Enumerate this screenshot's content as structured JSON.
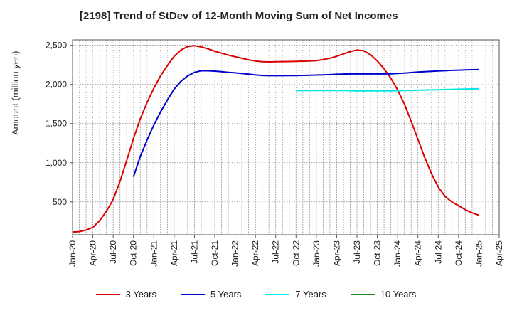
{
  "chart_data": {
    "type": "line",
    "title": "[2198]  Trend of StDev of 12-Month Moving Sum of Net Incomes",
    "ylabel": "Amount (million yen)",
    "xlabel": "",
    "ylim": [
      80,
      2570
    ],
    "yticks": [
      500,
      1000,
      1500,
      2000,
      2500
    ],
    "ytick_labels": [
      "500",
      "1,000",
      "1,500",
      "2,000",
      "2,500"
    ],
    "xticks": [
      "Jan-20",
      "Apr-20",
      "Jul-20",
      "Oct-20",
      "Jan-21",
      "Apr-21",
      "Jul-21",
      "Oct-21",
      "Jan-22",
      "Apr-22",
      "Jul-22",
      "Oct-22",
      "Jan-23",
      "Apr-23",
      "Jul-23",
      "Oct-23",
      "Jan-24",
      "Apr-24",
      "Jul-24",
      "Oct-24",
      "Jan-25",
      "Apr-25"
    ],
    "grid": true,
    "legend_position": "bottom",
    "series": [
      {
        "name": "3 Years",
        "color": "#dd0000",
        "points": [
          [
            "Jan-20",
            115
          ],
          [
            "Feb-20",
            120
          ],
          [
            "Mar-20",
            140
          ],
          [
            "Apr-20",
            175
          ],
          [
            "May-20",
            260
          ],
          [
            "Jun-20",
            380
          ],
          [
            "Jul-20",
            530
          ],
          [
            "Aug-20",
            760
          ],
          [
            "Sep-20",
            1030
          ],
          [
            "Oct-20",
            1310
          ],
          [
            "Nov-20",
            1560
          ],
          [
            "Dec-20",
            1770
          ],
          [
            "Jan-21",
            1950
          ],
          [
            "Feb-21",
            2110
          ],
          [
            "Mar-21",
            2240
          ],
          [
            "Apr-21",
            2360
          ],
          [
            "May-21",
            2440
          ],
          [
            "Jun-21",
            2485
          ],
          [
            "Jul-21",
            2495
          ],
          [
            "Aug-21",
            2480
          ],
          [
            "Sep-21",
            2455
          ],
          [
            "Oct-21",
            2425
          ],
          [
            "Nov-21",
            2400
          ],
          [
            "Dec-21",
            2375
          ],
          [
            "Jan-22",
            2355
          ],
          [
            "Feb-22",
            2335
          ],
          [
            "Mar-22",
            2315
          ],
          [
            "Apr-22",
            2300
          ],
          [
            "May-22",
            2290
          ],
          [
            "Jun-22",
            2288
          ],
          [
            "Jul-22",
            2290
          ],
          [
            "Aug-22",
            2292
          ],
          [
            "Sep-22",
            2293
          ],
          [
            "Oct-22",
            2295
          ],
          [
            "Nov-22",
            2297
          ],
          [
            "Dec-22",
            2300
          ],
          [
            "Jan-23",
            2305
          ],
          [
            "Feb-23",
            2318
          ],
          [
            "Mar-23",
            2335
          ],
          [
            "Apr-23",
            2360
          ],
          [
            "May-23",
            2390
          ],
          [
            "Jun-23",
            2420
          ],
          [
            "Jul-23",
            2440
          ],
          [
            "Aug-23",
            2430
          ],
          [
            "Sep-23",
            2380
          ],
          [
            "Oct-23",
            2300
          ],
          [
            "Nov-23",
            2200
          ],
          [
            "Dec-23",
            2080
          ],
          [
            "Jan-24",
            1930
          ],
          [
            "Feb-24",
            1750
          ],
          [
            "Mar-24",
            1530
          ],
          [
            "Apr-24",
            1300
          ],
          [
            "May-24",
            1070
          ],
          [
            "Jun-24",
            860
          ],
          [
            "Jul-24",
            690
          ],
          [
            "Aug-24",
            570
          ],
          [
            "Sep-24",
            500
          ],
          [
            "Oct-24",
            450
          ],
          [
            "Nov-24",
            400
          ],
          [
            "Dec-24",
            360
          ],
          [
            "Jan-25",
            330
          ]
        ]
      },
      {
        "name": "5 Years",
        "color": "#0000cc",
        "points": [
          [
            "Oct-20",
            820
          ],
          [
            "Nov-20",
            1080
          ],
          [
            "Dec-20",
            1290
          ],
          [
            "Jan-21",
            1480
          ],
          [
            "Feb-21",
            1650
          ],
          [
            "Mar-21",
            1800
          ],
          [
            "Apr-21",
            1940
          ],
          [
            "May-21",
            2040
          ],
          [
            "Jun-21",
            2110
          ],
          [
            "Jul-21",
            2155
          ],
          [
            "Aug-21",
            2175
          ],
          [
            "Sep-21",
            2175
          ],
          [
            "Oct-21",
            2170
          ],
          [
            "Nov-21",
            2163
          ],
          [
            "Dec-21",
            2155
          ],
          [
            "Jan-22",
            2148
          ],
          [
            "Feb-22",
            2140
          ],
          [
            "Mar-22",
            2132
          ],
          [
            "Apr-22",
            2122
          ],
          [
            "May-22",
            2115
          ],
          [
            "Jun-22",
            2112
          ],
          [
            "Jul-22",
            2112
          ],
          [
            "Aug-22",
            2112
          ],
          [
            "Sep-22",
            2113
          ],
          [
            "Oct-22",
            2114
          ],
          [
            "Nov-22",
            2116
          ],
          [
            "Dec-22",
            2118
          ],
          [
            "Jan-23",
            2120
          ],
          [
            "Feb-23",
            2123
          ],
          [
            "Mar-23",
            2126
          ],
          [
            "Apr-23",
            2130
          ],
          [
            "May-23",
            2133
          ],
          [
            "Jun-23",
            2135
          ],
          [
            "Jul-23",
            2135
          ],
          [
            "Aug-23",
            2135
          ],
          [
            "Sep-23",
            2135
          ],
          [
            "Oct-23",
            2135
          ],
          [
            "Nov-23",
            2135
          ],
          [
            "Dec-23",
            2136
          ],
          [
            "Jan-24",
            2140
          ],
          [
            "Feb-24",
            2146
          ],
          [
            "Mar-24",
            2152
          ],
          [
            "Apr-24",
            2158
          ],
          [
            "May-24",
            2163
          ],
          [
            "Jun-24",
            2168
          ],
          [
            "Jul-24",
            2172
          ],
          [
            "Aug-24",
            2176
          ],
          [
            "Sep-24",
            2180
          ],
          [
            "Oct-24",
            2183
          ],
          [
            "Nov-24",
            2186
          ],
          [
            "Dec-24",
            2188
          ],
          [
            "Jan-25",
            2190
          ]
        ]
      },
      {
        "name": "7 Years",
        "color": "#00e5e5",
        "points": [
          [
            "Oct-22",
            1920
          ],
          [
            "Nov-22",
            1922
          ],
          [
            "Dec-22",
            1922
          ],
          [
            "Jan-23",
            1923
          ],
          [
            "Feb-23",
            1923
          ],
          [
            "Mar-23",
            1923
          ],
          [
            "Apr-23",
            1922
          ],
          [
            "May-23",
            1922
          ],
          [
            "Jun-23",
            1920
          ],
          [
            "Jul-23",
            1918
          ],
          [
            "Aug-23",
            1918
          ],
          [
            "Sep-23",
            1918
          ],
          [
            "Oct-23",
            1918
          ],
          [
            "Nov-23",
            1918
          ],
          [
            "Dec-23",
            1918
          ],
          [
            "Jan-24",
            1920
          ],
          [
            "Feb-24",
            1922
          ],
          [
            "Mar-24",
            1924
          ],
          [
            "Apr-24",
            1926
          ],
          [
            "May-24",
            1928
          ],
          [
            "Jun-24",
            1930
          ],
          [
            "Jul-24",
            1932
          ],
          [
            "Aug-24",
            1935
          ],
          [
            "Sep-24",
            1937
          ],
          [
            "Oct-24",
            1939
          ],
          [
            "Nov-24",
            1941
          ],
          [
            "Dec-24",
            1943
          ],
          [
            "Jan-25",
            1945
          ]
        ]
      },
      {
        "name": "10 Years",
        "color": "#1a8a1a",
        "points": []
      }
    ]
  }
}
